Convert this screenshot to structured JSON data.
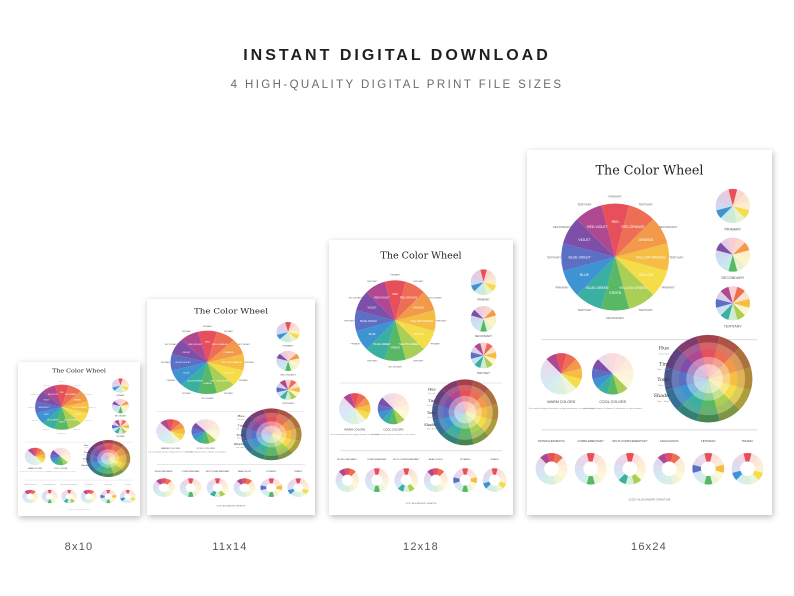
{
  "header": {
    "title": "INSTANT DIGITAL DOWNLOAD",
    "subtitle": "4 HIGH-QUALITY DIGITAL PRINT FILE SIZES"
  },
  "poster": {
    "heading": "The Color Wheel",
    "wheel_segments": [
      {
        "label": "RED",
        "color": "#e7505a"
      },
      {
        "label": "RED-ORANGE",
        "color": "#ee6e55"
      },
      {
        "label": "ORANGE",
        "color": "#f29a4a"
      },
      {
        "label": "YELLOW-ORANGE",
        "color": "#f6bd45"
      },
      {
        "label": "YELLOW",
        "color": "#f4dd49"
      },
      {
        "label": "YELLOW-GREEN",
        "color": "#a9cf56"
      },
      {
        "label": "GREEN",
        "color": "#58b866"
      },
      {
        "label": "BLUE-GREEN",
        "color": "#39b0a1"
      },
      {
        "label": "BLUE",
        "color": "#3e93d2"
      },
      {
        "label": "BLUE-VIOLET",
        "color": "#5b6fc4"
      },
      {
        "label": "VIOLET",
        "color": "#7d4fa8"
      },
      {
        "label": "RED-VIOLET",
        "color": "#b04791"
      }
    ],
    "ring_labels": [
      "PRIMARY",
      "TERTIARY",
      "SECONDARY",
      "TERTIARY",
      "PRIMARY",
      "TERTIARY",
      "SECONDARY",
      "TERTIARY",
      "PRIMARY",
      "TERTIARY",
      "SECONDARY",
      "TERTIARY"
    ],
    "side_wheels": [
      "PRIMARY",
      "SECONDARY",
      "TERTIARY"
    ],
    "temperature": [
      {
        "label": "WARM COLORS",
        "note": "Can create feelings of passion, energy, excitement, or even hostility"
      },
      {
        "label": "COOL COLORS",
        "note": "Can create feelings of calmness, relaxation, or even sadness"
      }
    ],
    "value_terms": [
      {
        "term": "Hue",
        "note": "Pure color"
      },
      {
        "term": "Tint",
        "note": "Hue + white"
      },
      {
        "term": "Tone",
        "note": "Hue + gray"
      },
      {
        "term": "Shade",
        "note": "Hue + black"
      }
    ],
    "harmonies": [
      "MONOCHROMATIC",
      "COMPLEMENTARY",
      "SPLIT-COMPLEMENTARY",
      "ANALOGOUS",
      "TETRADIC",
      "TRIADIC"
    ],
    "credit": "CIZZY ALEXANDER CREATIVE"
  },
  "sizes": [
    {
      "label": "8x10"
    },
    {
      "label": "11x14"
    },
    {
      "label": "12x18"
    },
    {
      "label": "16x24"
    }
  ]
}
